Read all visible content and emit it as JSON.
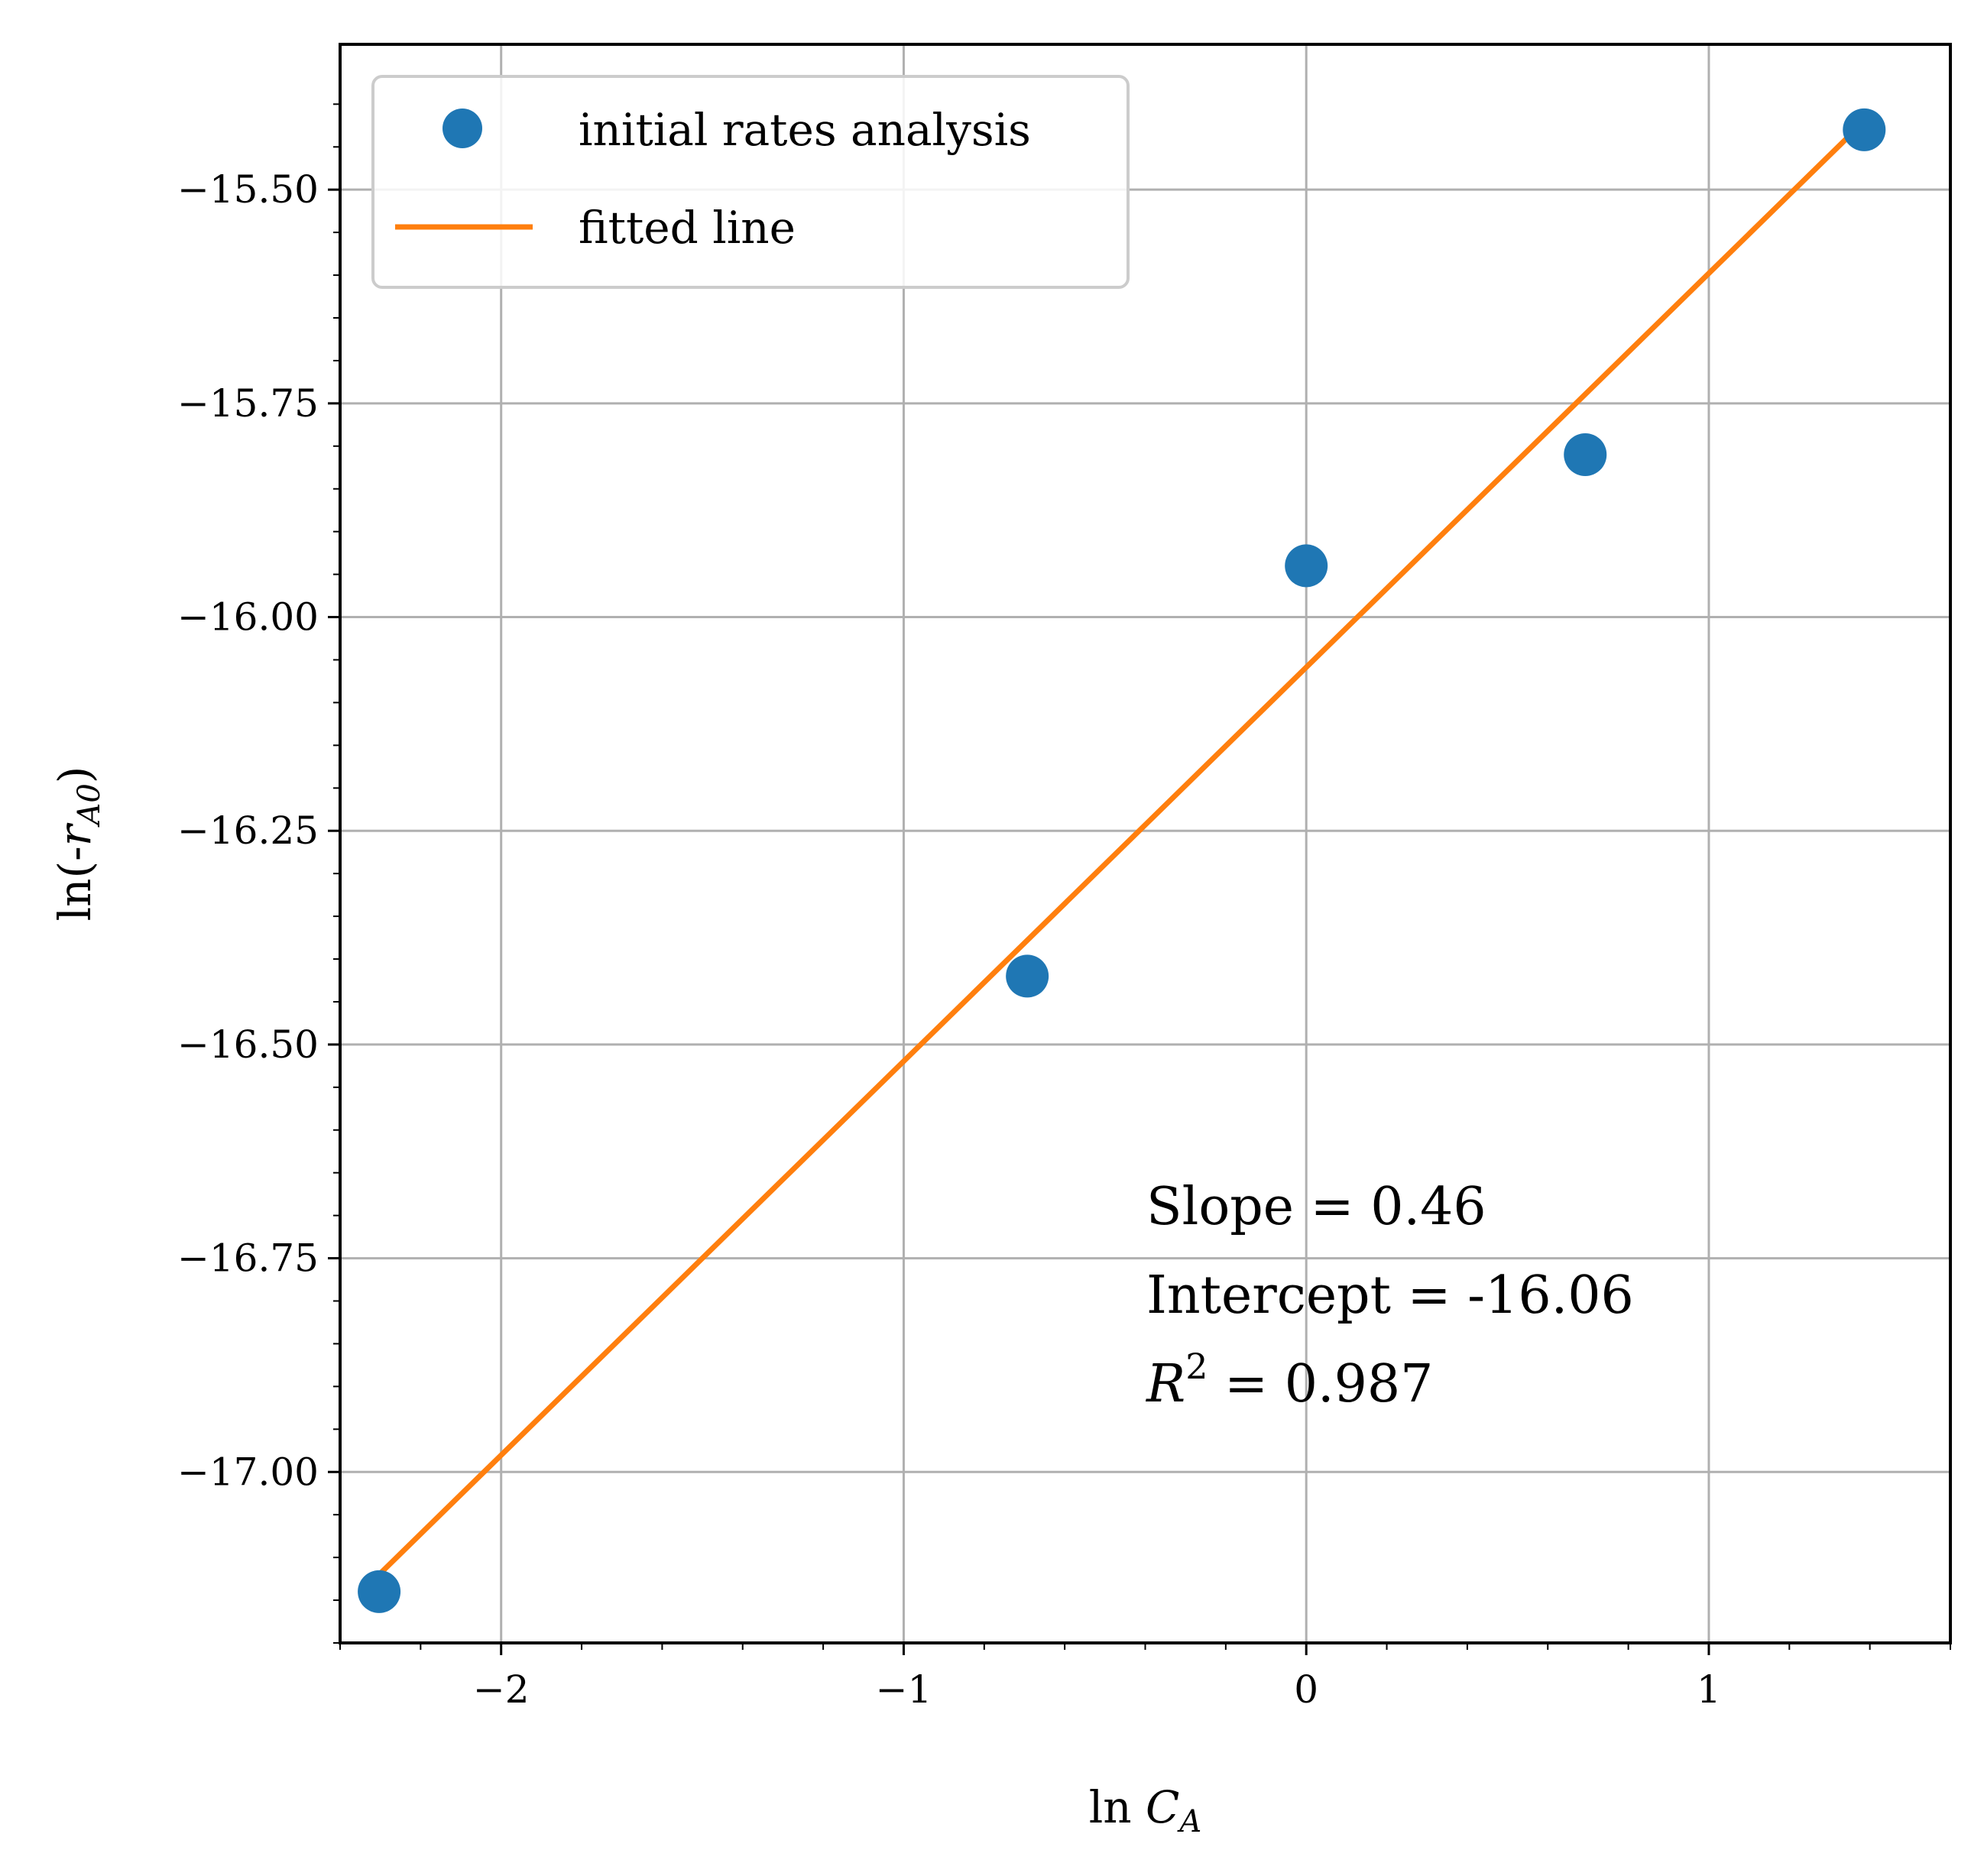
{
  "chart_data": {
    "type": "scatter",
    "title": "",
    "xlabel": "ln C_A",
    "ylabel": "ln(-r_A0)",
    "xlim": [
      -2.4,
      1.6
    ],
    "ylim": [
      -17.2,
      -15.33
    ],
    "xticks": [
      -2,
      -1,
      0,
      1
    ],
    "xtick_labels": [
      "−2",
      "−1",
      "0",
      "1"
    ],
    "yticks": [
      -15.5,
      -15.75,
      -16.0,
      -16.25,
      -16.5,
      -16.75,
      -17.0
    ],
    "ytick_labels": [
      "−15.50",
      "−15.75",
      "−16.00",
      "−16.25",
      "−16.50",
      "−16.75",
      "−17.00"
    ],
    "grid": true,
    "legend_position": "top-left",
    "series": [
      {
        "name": "initial rates analysis",
        "kind": "scatter",
        "color": "#1f77b4",
        "x": [
          -2.303,
          -0.693,
          0.0,
          0.693,
          1.386
        ],
        "y": [
          -17.14,
          -16.42,
          -15.94,
          -15.81,
          -15.43
        ]
      },
      {
        "name": "fitted line",
        "kind": "line",
        "color": "#ff7f0e",
        "x": [
          -2.303,
          1.386
        ],
        "y": [
          -17.12,
          -15.42
        ]
      }
    ],
    "annotations": {
      "slope": "Slope = 0.46",
      "intercept": "Intercept = -16.06",
      "r2_symbol": "R",
      "r2_exp": "2",
      "r2_value": " = 0.987"
    }
  }
}
